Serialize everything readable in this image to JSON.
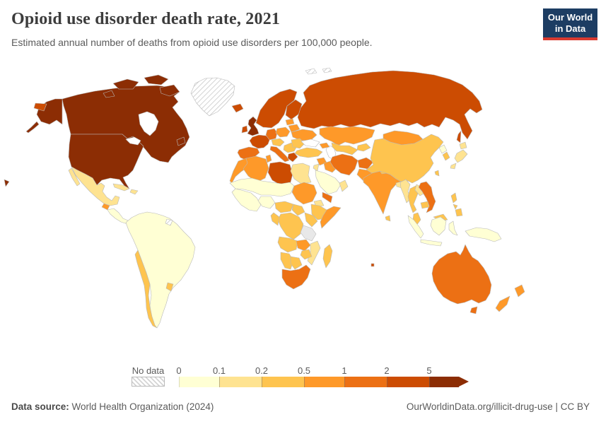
{
  "header": {
    "title": "Opioid use disorder death rate, 2021",
    "subtitle": "Estimated annual number of deaths from opioid use disorders per 100,000 people."
  },
  "logo": {
    "line1": "Our World",
    "line2": "in Data",
    "bg_color": "#1d3d63",
    "accent_color": "#d93a30"
  },
  "legend": {
    "no_data_label": "No data"
  },
  "footer": {
    "source_label": "Data source:",
    "source_value": " World Health Organization (2024)",
    "right_text": "OurWorldinData.org/illicit-drug-use | CC BY"
  },
  "chart_data": {
    "type": "choropleth_map",
    "title": "Opioid use disorder death rate, 2021",
    "subtitle": "Estimated annual number of deaths from opioid use disorders per 100,000 people.",
    "year": 2021,
    "unit": "deaths per 100,000 people",
    "projection": "world",
    "legend": {
      "tick_labels": [
        "0",
        "0.1",
        "0.2",
        "0.5",
        "1",
        "2",
        "5"
      ],
      "bucket_order": [
        "0-0.1",
        "0.1-0.2",
        "0.2-0.5",
        "0.5-1",
        "1-2",
        "2-5",
        "5+"
      ],
      "bucket_colors": {
        "0-0.1": "#ffffd4",
        "0.1-0.2": "#fee391",
        "0.2-0.5": "#fec44f",
        "0.5-1": "#fe9929",
        "1-2": "#ec7014",
        "2-5": "#cc4c02",
        "5+": "#8c2d04"
      },
      "no_data_pattern": "diagonal-hatch",
      "border_color": "#b9b9b9"
    },
    "regions": {
      "United States": "5+",
      "Canada": "5+",
      "Greenland": "No data",
      "Svalbard": "No data",
      "Mexico": "0.1-0.2",
      "Guatemala": "0.5-1",
      "Central America": "0-0.1",
      "Cuba": "0.1-0.2",
      "Haiti/Dominican Republic": "0.1-0.2",
      "South America": "0-0.1",
      "Chile": "0.2-0.5",
      "Uruguay": "0.2-0.5",
      "French Guiana": "No data",
      "United Kingdom": "5+",
      "Ireland": "2-5",
      "Iceland": "2-5",
      "Norway/Sweden": "2-5",
      "Finland": "2-5",
      "Denmark": "2-5",
      "France": "2-5",
      "Spain/Portugal": "1-2",
      "Germany": "1-2",
      "Central Europe": "0.2-0.5",
      "Italy": "1-2",
      "Poland": "0.5-1",
      "Baltics": "0.5-1",
      "Belarus": "0.5-1",
      "Ukraine": "0.5-1",
      "Balkans": "0.2-0.5",
      "Romania/Bulgaria": "0.2-0.5",
      "Greece": "2-5",
      "Russia": "2-5",
      "Kazakhstan": "0.5-1",
      "Central Asia": "0.2-0.5",
      "Kyrgyzstan/Tajikistan": "0.2-0.5",
      "Caucasus": "0.5-1",
      "Turkey": "0.2-0.5",
      "Syria": "0.5-1",
      "Jordan/Israel": "0.1-0.2",
      "Iraq": "0.5-1",
      "Saudi Arabia": "0-0.1",
      "Yemen": "1-2",
      "Oman": "0.1-0.2",
      "Iran": "1-2",
      "Afghanistan": "1-2",
      "Pakistan": "0.5-1",
      "India": "0.5-1",
      "Sri Lanka": "0.2-0.5",
      "Bangladesh": "0.1-0.2",
      "Nepal": "0.2-0.5",
      "Mongolia": "0.5-1",
      "China": "0.2-0.5",
      "North Korea": "0-0.1",
      "South Korea": "0.2-0.5",
      "Japan": "0.1-0.2",
      "Taiwan": "0.2-0.5",
      "Myanmar": "0.1-0.2",
      "Thailand": "0.2-0.5",
      "Laos": "0.1-0.2",
      "Vietnam": "1-2",
      "Cambodia": "0.2-0.5",
      "Malaysia": "0.2-0.5",
      "Indonesia": "0-0.1",
      "New Guinea": "0-0.1",
      "Philippines": "0.2-0.5",
      "Australia": "1-2",
      "New Zealand": "0.5-1",
      "Morocco": "0.5-1",
      "Algeria": "0.5-1",
      "Tunisia": "0.5-1",
      "Libya": "2-5",
      "Egypt": "0.1-0.2",
      "Sahel": "0-0.1",
      "West Africa": "0-0.1",
      "Nigeria": "0-0.1",
      "Sudan": "0.5-1",
      "Eritrea": "0.1-0.2",
      "Ethiopia": "0.2-0.5",
      "Somalia": "0.5-1",
      "Cameroon/Central Africa": "0.2-0.5",
      "Uganda": "0.2-0.5",
      "Kenya": "0.2-0.5",
      "DR Congo": "0.2-0.5",
      "Gabon/Congo": "0.2-0.5",
      "Angola": "0.2-0.5",
      "Zambia": "0.5-1",
      "Mozambique": "0.1-0.2",
      "Zimbabwe": "0.2-0.5",
      "Namibia": "0.2-0.5",
      "Botswana": "0.2-0.5",
      "South Africa": "1-2",
      "Madagascar": "0.2-0.5",
      "Mauritius": "2-5"
    }
  }
}
